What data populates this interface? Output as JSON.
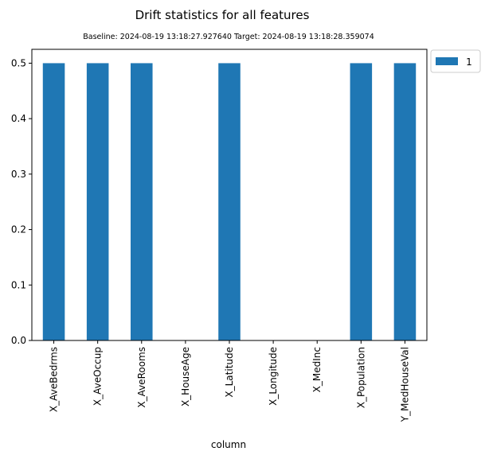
{
  "chart_data": {
    "type": "bar",
    "title": "Drift statistics for all features",
    "subtitle": "Baseline: 2024-08-19 13:18:27.927640 Target: 2024-08-19 13:18:28.359074",
    "xlabel": "column",
    "ylabel": "",
    "categories": [
      "X_AveBedrms",
      "X_AveOccup",
      "X_AveRooms",
      "X_HouseAge",
      "X_Latitude",
      "X_Longitude",
      "X_MedInc",
      "X_Population",
      "Y_MedHouseVal"
    ],
    "series": [
      {
        "name": "1",
        "color": "#1f77b4",
        "values": [
          0.5,
          0.5,
          0.5,
          0,
          0.5,
          0,
          0,
          0.5,
          0.5
        ]
      }
    ],
    "ylim": [
      0,
      0.525
    ],
    "yticks": [
      "0.0",
      "0.1",
      "0.2",
      "0.3",
      "0.4",
      "0.5"
    ],
    "ytick_values": [
      0.0,
      0.1,
      0.2,
      0.3,
      0.4,
      0.5
    ],
    "grid": false,
    "legend_position": "outside-top-right"
  }
}
